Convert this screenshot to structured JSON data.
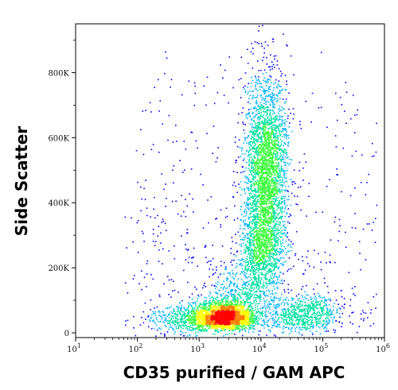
{
  "chart_data": {
    "type": "scatter",
    "title": "",
    "xlabel": "CD35 purified / GAM APC",
    "ylabel": "Side Scatter",
    "x_scale": "log",
    "xlim": [
      10,
      1000000
    ],
    "ylim": [
      0,
      950000
    ],
    "x_ticks": [
      {
        "value": 10,
        "base": "10",
        "exp": "1"
      },
      {
        "value": 100,
        "base": "10",
        "exp": "2"
      },
      {
        "value": 1000,
        "base": "10",
        "exp": "3"
      },
      {
        "value": 10000,
        "base": "10",
        "exp": "4"
      },
      {
        "value": 100000,
        "base": "10",
        "exp": "5"
      },
      {
        "value": 1000000,
        "base": "10",
        "exp": "6"
      }
    ],
    "y_ticks": [
      {
        "value": 0,
        "label": "0"
      },
      {
        "value": 200000,
        "label": "200K"
      },
      {
        "value": 400000,
        "label": "400K"
      },
      {
        "value": 600000,
        "label": "600K"
      },
      {
        "value": 800000,
        "label": "800K"
      }
    ],
    "grid": false,
    "density_colormap": [
      "#0000ff",
      "#00b4ff",
      "#00e0a0",
      "#40ff40",
      "#ffff00",
      "#ff8000",
      "#ff0000"
    ],
    "populations": [
      {
        "x": 2500,
        "y": 30000,
        "n": 2200
      },
      {
        "x": 12000,
        "y": 500000,
        "n": 2800
      },
      {
        "x": 50000,
        "y": 60000,
        "n": 700
      },
      {
        "x": 600,
        "y": 40000,
        "n": 400
      },
      {
        "x": 10000,
        "y": 250000,
        "n": 900
      },
      {
        "x": 5000,
        "y": 130000,
        "n": 400
      }
    ]
  }
}
